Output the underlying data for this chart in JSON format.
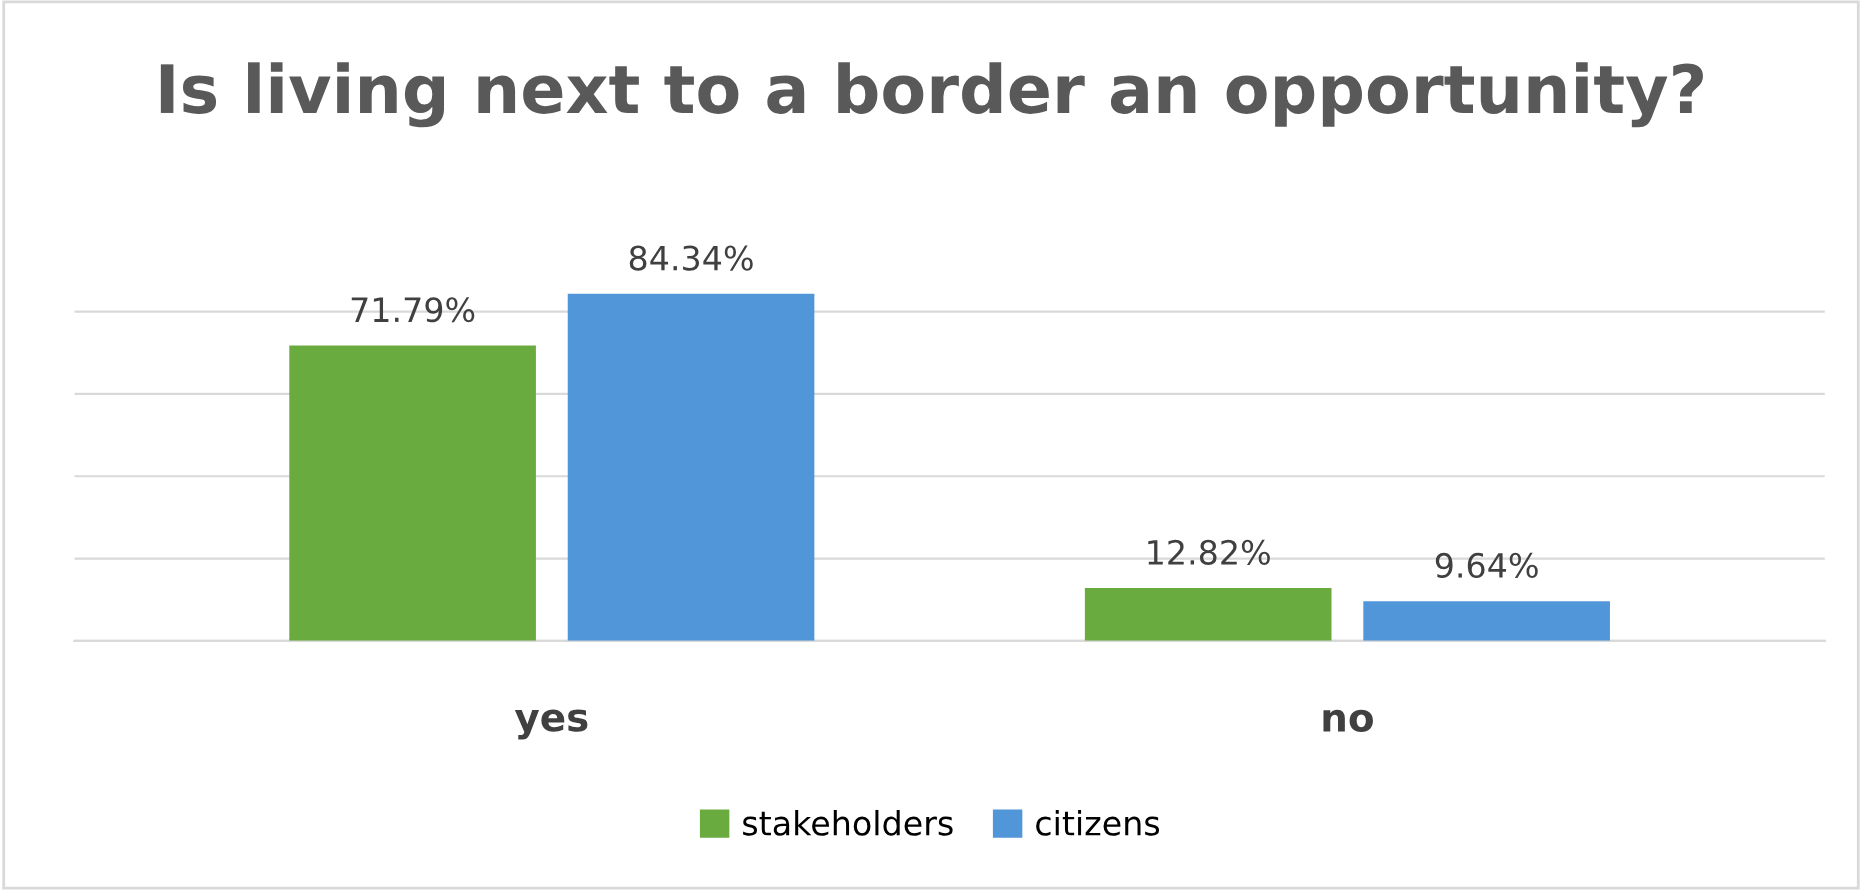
{
  "chart_data": {
    "type": "bar",
    "title": "Is living next to a border an opportunity?",
    "categories": [
      "yes",
      "no"
    ],
    "series": [
      {
        "name": "stakeholders",
        "color": "#6aab3f",
        "values": [
          71.79,
          12.82
        ],
        "value_labels": [
          "71.79%",
          "12.82%"
        ]
      },
      {
        "name": "citizens",
        "color": "#5096d8",
        "values": [
          84.34,
          9.64
        ],
        "value_labels": [
          "84.34%",
          "9.64%"
        ]
      }
    ],
    "tick_labels": "x",
    "grid": "y",
    "legend": "bottom"
  }
}
